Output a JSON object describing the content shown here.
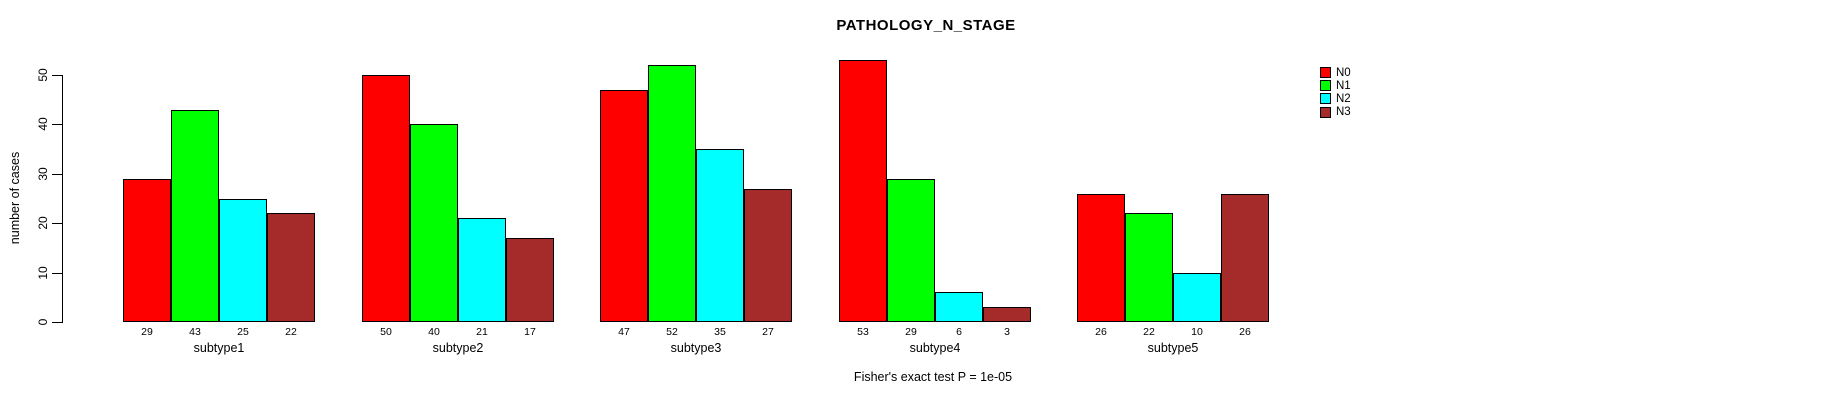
{
  "title": "PATHOLOGY_N_STAGE",
  "footer": "Fisher's exact test P = 1e-05",
  "chart_data": {
    "type": "bar",
    "title": "PATHOLOGY_N_STAGE",
    "xlabel": "",
    "ylabel": "number of cases",
    "ylim": [
      0,
      50
    ],
    "yticks": [
      0,
      10,
      20,
      30,
      40,
      50
    ],
    "grid": false,
    "bar_value_labels": true,
    "legend_position": "right",
    "annotation": "Fisher's exact test P = 1e-05",
    "categories": [
      "subtype1",
      "subtype2",
      "subtype3",
      "subtype4",
      "subtype5"
    ],
    "series": [
      {
        "name": "N0",
        "color": "#FF0000",
        "values": [
          29,
          50,
          47,
          53,
          26
        ]
      },
      {
        "name": "N1",
        "color": "#00FF00",
        "values": [
          43,
          40,
          52,
          29,
          22
        ]
      },
      {
        "name": "N2",
        "color": "#00FFFF",
        "values": [
          25,
          21,
          35,
          6,
          10
        ]
      },
      {
        "name": "N3",
        "color": "#A52A2A",
        "values": [
          22,
          17,
          27,
          3,
          26
        ]
      }
    ],
    "axis_color": "#000000"
  }
}
